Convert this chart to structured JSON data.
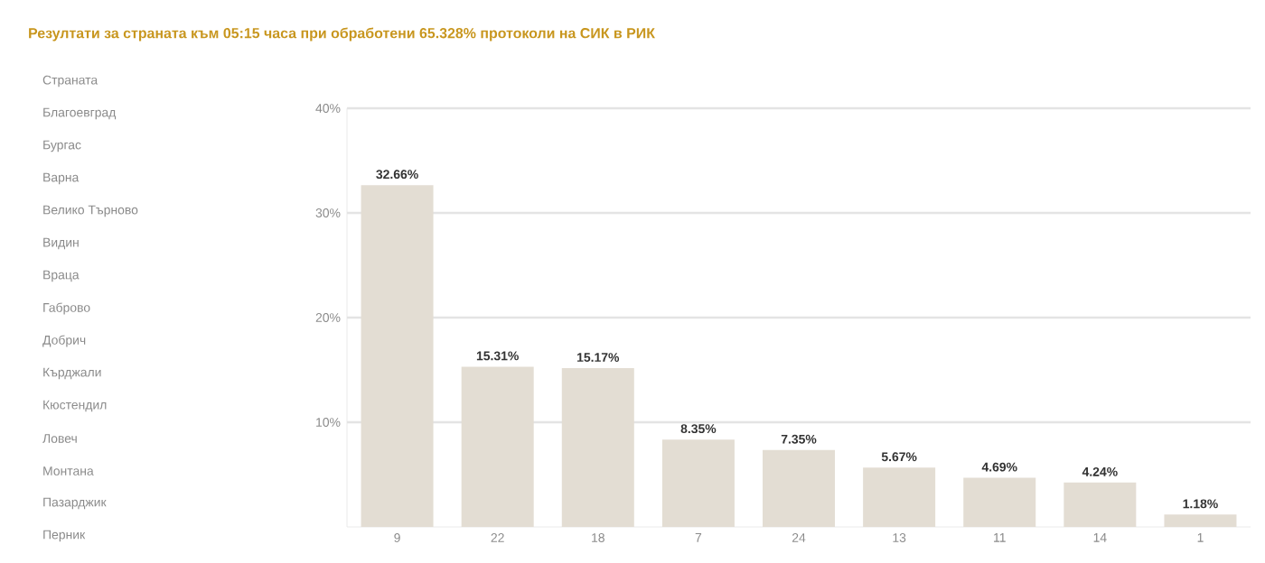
{
  "chart_data": {
    "type": "bar",
    "title": "Резултати за страната към 05:15 часа при обработени 65.328% протоколи на СИК в РИК",
    "categories": [
      "9",
      "22",
      "18",
      "7",
      "24",
      "13",
      "11",
      "14",
      "1"
    ],
    "values": [
      32.66,
      15.31,
      15.17,
      8.35,
      7.35,
      5.67,
      4.69,
      4.24,
      1.18
    ],
    "value_labels": [
      "32.66%",
      "15.31%",
      "15.17%",
      "8.35%",
      "7.35%",
      "5.67%",
      "4.69%",
      "4.24%",
      "1.18%"
    ],
    "color": "#e3ddd3",
    "ylim": [
      0,
      40
    ],
    "yticks": [
      {
        "value": 10,
        "label": "10%"
      },
      {
        "value": 20,
        "label": "20%"
      },
      {
        "value": 30,
        "label": "30%"
      },
      {
        "value": 40,
        "label": "40%"
      }
    ],
    "grid": "y",
    "annotations": [
      "Страната",
      "Благоевград",
      "Бургас",
      "Варна",
      "Велико Търново",
      "Видин",
      "Враца",
      "Габрово",
      "Добрич",
      "Кърджали",
      "Кюстендил",
      "Ловеч",
      "Монтана",
      "Пазарджик",
      "Перник"
    ]
  }
}
